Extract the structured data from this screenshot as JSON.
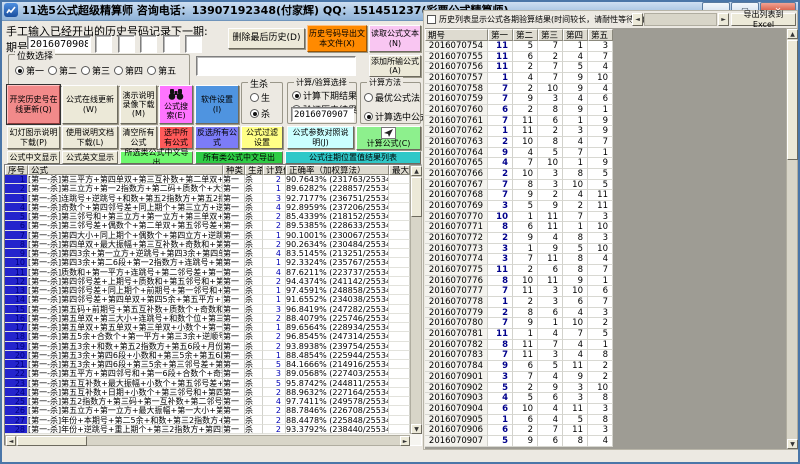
{
  "window": {
    "title": "11选5公式超级精算师  咨询电话：13907192348(付家辉)  QQ：151451237(彩票公式精算师)",
    "controls": {
      "minimize": "—",
      "maximize": "▢",
      "close": "✕"
    }
  },
  "colors": {
    "titlebar": "#a7c4e2",
    "accent_orange": "#ff8a00",
    "accent_pink": "#f9c6f2",
    "accent_magenta": "#ff74ff",
    "accent_blue": "#4f94e0",
    "accent_salmon": "#f28a8a",
    "accent_red": "#ff5a5a",
    "accent_purple": "#7c7cf8",
    "accent_yellow": "#ffff86",
    "accent_cyan": "#caffff",
    "accent_green": "#8df08d",
    "accent_dgreen": "#2ecc44",
    "accent_teal": "#2fc8c8",
    "serial_blue": "#2424cc",
    "value_blue": "#0000b4"
  },
  "icons": {
    "app": "line-chart",
    "formula_search": "binoculars",
    "calc_formula": "plane",
    "scroll": [
      "◄",
      "►",
      "▲",
      "▼"
    ]
  },
  "top": {
    "history_label": "手工输入已经开出的历史号码记录下一期:",
    "period_label": "期号:",
    "period_value": "2016070908",
    "formula_input": "",
    "delete_last": "删除最后历史(D)",
    "export_history": "历史号码导出文本文件(X)",
    "read_formula": "读取公式文本(N)",
    "add_formula": "添加所输公式(A)"
  },
  "digit_select": {
    "legend": "位数选择",
    "options": [
      {
        "label": "第一",
        "selected": true
      },
      {
        "label": "第二",
        "selected": false
      },
      {
        "label": "第三",
        "selected": false
      },
      {
        "label": "第四",
        "selected": false
      },
      {
        "label": "第五",
        "selected": false
      }
    ]
  },
  "tool_row1": {
    "update_history": "开奖历史号在线更新(Q)",
    "update_formula": "公式在线更新(W)",
    "demo_download": "演示说明录像下载(M)",
    "formula_search": "公式搜索(E)",
    "software_settings": "软件设置(I)"
  },
  "sheng_sha": {
    "legend": "生杀",
    "options": [
      {
        "label": "生",
        "selected": false
      },
      {
        "label": "杀",
        "selected": true
      }
    ]
  },
  "calc_select": {
    "legend": "计算/验算选择",
    "options": [
      {
        "label": "计算下期结果",
        "selected": true
      },
      {
        "label": "验证历史结果",
        "selected": false
      }
    ],
    "period": "2016070907"
  },
  "calc_method": {
    "legend": "计算方法",
    "options": [
      {
        "label": "最优公式法",
        "selected": false
      },
      {
        "label": "计算选中公式",
        "selected": true
      }
    ]
  },
  "tool_row2": {
    "slides_download": "幻灯图示说明下载(P)",
    "manual_download": "使用说明文档下载(L)",
    "clear_all": "清空所有公式",
    "select_all": "选中所有公式",
    "invert_select": "反选所有公式",
    "filter_settings": "公式过滤设置",
    "param_reference": "公式参数对照说明(J)",
    "calc_formula": "计算公式(C)"
  },
  "tool_row3": {
    "cn_display": "公式中文显示",
    "en_display": "公式英文显示",
    "export_selected": "所选类公式中文导出",
    "export_all": "所有类公式中文导出",
    "position_result": "公式往期位置值结果列表"
  },
  "formula_table": {
    "headers": [
      "序号",
      "公式",
      "种类",
      "生杀",
      "计算值",
      "正确率（加权算法）",
      "最大"
    ],
    "rows": [
      {
        "no": "1",
        "formula": "[第一-杀]第三平方+第四单双+第三互补数+第二单双+第五大",
        "kind": "第一",
        "ss": "杀",
        "value": "2",
        "rate": "90.7643%  (231763/255346)"
      },
      {
        "no": "2",
        "formula": "[第一-杀]第三立方+第一2指数方+第二码+质数个+大数个+第",
        "kind": "第一",
        "ss": "杀",
        "value": "1",
        "rate": "89.6282%  (228857/255346)"
      },
      {
        "no": "3",
        "formula": "[第一-杀]连跳号+逆跳号+和数+第五2指数方+第五2指数方+第",
        "kind": "第一",
        "ss": "杀",
        "value": "3",
        "rate": "92.7177%  (236751/255346)"
      },
      {
        "no": "4",
        "formula": "[第一-杀]奇数个+第四邻号差+同上期个+第三立方+逆顺号+第",
        "kind": "第一",
        "ss": "杀",
        "value": "4",
        "rate": "92.8959%  (237206/255346)"
      },
      {
        "no": "5",
        "formula": "[第一-杀]第三邻号和+第三立方+第一立方+第三单双+第三5余",
        "kind": "第一",
        "ss": "杀",
        "value": "2",
        "rate": "85.4339%  (218152/255346)"
      },
      {
        "no": "6",
        "formula": "[第一-杀]第三邻号差+偶数个+第二单双+第五邻号差+第二平",
        "kind": "第一",
        "ss": "杀",
        "value": "2",
        "rate": "89.5385%  (228633/255346)"
      },
      {
        "no": "7",
        "formula": "[第一-杀]第四大小+同上期个+偶数个+第四立方+逆跳号+第一",
        "kind": "第一",
        "ss": "杀",
        "value": "1",
        "rate": "90.1001%  (230067/255346)"
      },
      {
        "no": "8",
        "formula": "[第一-杀]第四单双+最大振幅+第三互补数+奇数和+第四5余+",
        "kind": "第一",
        "ss": "杀",
        "value": "2",
        "rate": "90.2634%  (230484/255346)"
      },
      {
        "no": "9",
        "formula": "[第一-杀]第四3余+第一立方+逆跳号+第四3余+第四单双+第一",
        "kind": "第一",
        "ss": "杀",
        "value": "4",
        "rate": "83.5145%  (213251/255346)"
      },
      {
        "no": "10",
        "formula": "[第一-杀]第四3余+第二6段+第一2指数方+连跳号+第一大小+",
        "kind": "第一",
        "ss": "杀",
        "value": "1",
        "rate": "92.3324%  (235767/255346)"
      },
      {
        "no": "11",
        "formula": "[第一-杀]质数和+第一平方+连跳号+第二邻号差+第一平方+偶",
        "kind": "第一",
        "ss": "杀",
        "value": "4",
        "rate": "87.6211%  (223737/255346)"
      },
      {
        "no": "12",
        "formula": "[第一-杀]第四邻号差+上期号+质数和+第五邻号和+第五6段+",
        "kind": "第一",
        "ss": "杀",
        "value": "2",
        "rate": "94.4374%  (241142/255346)"
      },
      {
        "no": "13",
        "formula": "[第一-杀]第四邻号差+同上期个+前期号+第一邻号和+第二立",
        "kind": "第一",
        "ss": "杀",
        "value": "1",
        "rate": "97.4591%  (248858/255346)"
      },
      {
        "no": "14",
        "formula": "[第一-杀]第四邻号差+第四单双+第四5余+第五平方+第二2指",
        "kind": "第一",
        "ss": "杀",
        "value": "1",
        "rate": "91.6552%  (234038/255346)"
      },
      {
        "no": "15",
        "formula": "[第一-杀]第五码+前期号+第五互补数+质数个+奇数和+上期号",
        "kind": "第一",
        "ss": "杀",
        "value": "3",
        "rate": "96.8419%  (247282/255346)"
      },
      {
        "no": "16",
        "formula": "[第一-杀]第五单双+第三大小+连跳号+和数个位+第三5余+第",
        "kind": "第一",
        "ss": "杀",
        "value": "2",
        "rate": "88.4079%  (225746/255346)"
      },
      {
        "no": "17",
        "formula": "[第一-杀]第五单双+第五单双+第三单双+小数个+第一单双+第",
        "kind": "第一",
        "ss": "杀",
        "value": "1",
        "rate": "89.6564%  (228934/255346)"
      },
      {
        "no": "18",
        "formula": "[第一-杀]第五5余+合数个+第一平方+第三3余+逆顺号+第一平",
        "kind": "第一",
        "ss": "杀",
        "value": "2",
        "rate": "96.8545%  (247314/255346)"
      },
      {
        "no": "19",
        "formula": "[第一-杀]第五3余+和数+第五2指数方+第五6段+月份+第五单",
        "kind": "第一",
        "ss": "杀",
        "value": "2",
        "rate": "93.8938%  (239754/255346)"
      },
      {
        "no": "20",
        "formula": "[第一-杀]第五3余+第四6段+小数和+第三5余+第五6段+第四平",
        "kind": "第一",
        "ss": "杀",
        "value": "1",
        "rate": "88.4854%  (225944/255346)"
      },
      {
        "no": "21",
        "formula": "[第一-杀]第五3余+第四6段+第三5余+第三邻号差+第五3余+第",
        "kind": "第一",
        "ss": "杀",
        "value": "5",
        "rate": "84.1666%  (214916/255346)"
      },
      {
        "no": "22",
        "formula": "[第一-杀]第五平方+第四邻号和+第一6段+合数个+奇数和+第",
        "kind": "第一",
        "ss": "杀",
        "value": "3",
        "rate": "89.0568%  (227403/255346)"
      },
      {
        "no": "23",
        "formula": "[第一-杀]第五互补数+最大振幅+小数个+第五邻号差+第一2指",
        "kind": "第一",
        "ss": "杀",
        "value": "5",
        "rate": "95.8742%  (244811/255346)"
      },
      {
        "no": "24",
        "formula": "[第一-杀]第五互补数+日期+小数个+第三邻号和+第四码+逆顺",
        "kind": "第一",
        "ss": "杀",
        "value": "2",
        "rate": "88.9632%  (227164/255346)"
      },
      {
        "no": "25",
        "formula": "[第一-杀]第五2指数方+第三码+第一互补数+第二邻号和+第三",
        "kind": "第一",
        "ss": "杀",
        "value": "4",
        "rate": "97.7411%  (249578/255346)"
      },
      {
        "no": "26",
        "formula": "[第一-杀]第五立方+第一立方+最大振幅+第一大小+第三单双",
        "kind": "第一",
        "ss": "杀",
        "value": "2",
        "rate": "88.7846%  (226708/255346)"
      },
      {
        "no": "27",
        "formula": "[第一-杀]年份+本期号+第二5余+和数+第三2指数方+第五大小",
        "kind": "第一",
        "ss": "杀",
        "value": "2",
        "rate": "88.4478%  (225848/255346)"
      },
      {
        "no": "28",
        "formula": "[第一-杀]年份+逆跳号+重上期个+第三2指数方+第四5余+第四",
        "kind": "第一",
        "ss": "杀",
        "value": "2",
        "rate": "93.3792%  (238440/255346)"
      }
    ]
  },
  "history_panel": {
    "checkbox_label": "历史列表显示公式各期验算结果(时间较长，请耐性等待...)",
    "export_excel": "导出列表到Excel",
    "table": {
      "headers": [
        "期号",
        "第一",
        "第二",
        "第三",
        "第四",
        "第五"
      ],
      "rows": [
        [
          "2016070754",
          11,
          5,
          7,
          1,
          3
        ],
        [
          "2016070755",
          11,
          6,
          2,
          4,
          7
        ],
        [
          "2016070756",
          11,
          2,
          7,
          5,
          4
        ],
        [
          "2016070757",
          1,
          4,
          7,
          9,
          10
        ],
        [
          "2016070758",
          7,
          2,
          10,
          9,
          4
        ],
        [
          "2016070759",
          7,
          9,
          3,
          4,
          6
        ],
        [
          "2016070760",
          6,
          2,
          8,
          9,
          1
        ],
        [
          "2016070761",
          7,
          11,
          6,
          1,
          9
        ],
        [
          "2016070762",
          1,
          11,
          2,
          3,
          9
        ],
        [
          "2016070763",
          2,
          10,
          8,
          4,
          7
        ],
        [
          "2016070764",
          9,
          4,
          5,
          7,
          1
        ],
        [
          "2016070765",
          4,
          7,
          10,
          1,
          9
        ],
        [
          "2016070766",
          2,
          10,
          3,
          8,
          5
        ],
        [
          "2016070767",
          7,
          8,
          3,
          10,
          5
        ],
        [
          "2016070768",
          7,
          9,
          2,
          4,
          11
        ],
        [
          "2016070769",
          3,
          5,
          9,
          2,
          11
        ],
        [
          "2016070770",
          10,
          1,
          11,
          7,
          3
        ],
        [
          "2016070771",
          8,
          6,
          11,
          1,
          10
        ],
        [
          "2016070772",
          2,
          9,
          4,
          8,
          3
        ],
        [
          "2016070773",
          3,
          1,
          9,
          5,
          10
        ],
        [
          "2016070774",
          3,
          7,
          11,
          8,
          4
        ],
        [
          "2016070775",
          11,
          2,
          6,
          8,
          7
        ],
        [
          "2016070776",
          8,
          10,
          11,
          9,
          1
        ],
        [
          "2016070777",
          7,
          11,
          3,
          10,
          6
        ],
        [
          "2016070778",
          1,
          2,
          3,
          6,
          7
        ],
        [
          "2016070779",
          2,
          8,
          6,
          4,
          3
        ],
        [
          "2016070780",
          7,
          9,
          1,
          10,
          2
        ],
        [
          "2016070781",
          11,
          1,
          4,
          7,
          5
        ],
        [
          "2016070782",
          8,
          11,
          7,
          4,
          1
        ],
        [
          "2016070783",
          7,
          11,
          3,
          4,
          8
        ],
        [
          "2016070784",
          9,
          6,
          5,
          11,
          2
        ],
        [
          "2016070901",
          3,
          7,
          4,
          9,
          2
        ],
        [
          "2016070902",
          5,
          2,
          9,
          3,
          10
        ],
        [
          "2016070903",
          4,
          5,
          6,
          3,
          8
        ],
        [
          "2016070904",
          6,
          10,
          4,
          11,
          3
        ],
        [
          "2016070905",
          1,
          6,
          4,
          5,
          8
        ],
        [
          "2016070906",
          6,
          2,
          7,
          11,
          3
        ],
        [
          "2016070907",
          5,
          9,
          6,
          8,
          4
        ]
      ]
    }
  }
}
